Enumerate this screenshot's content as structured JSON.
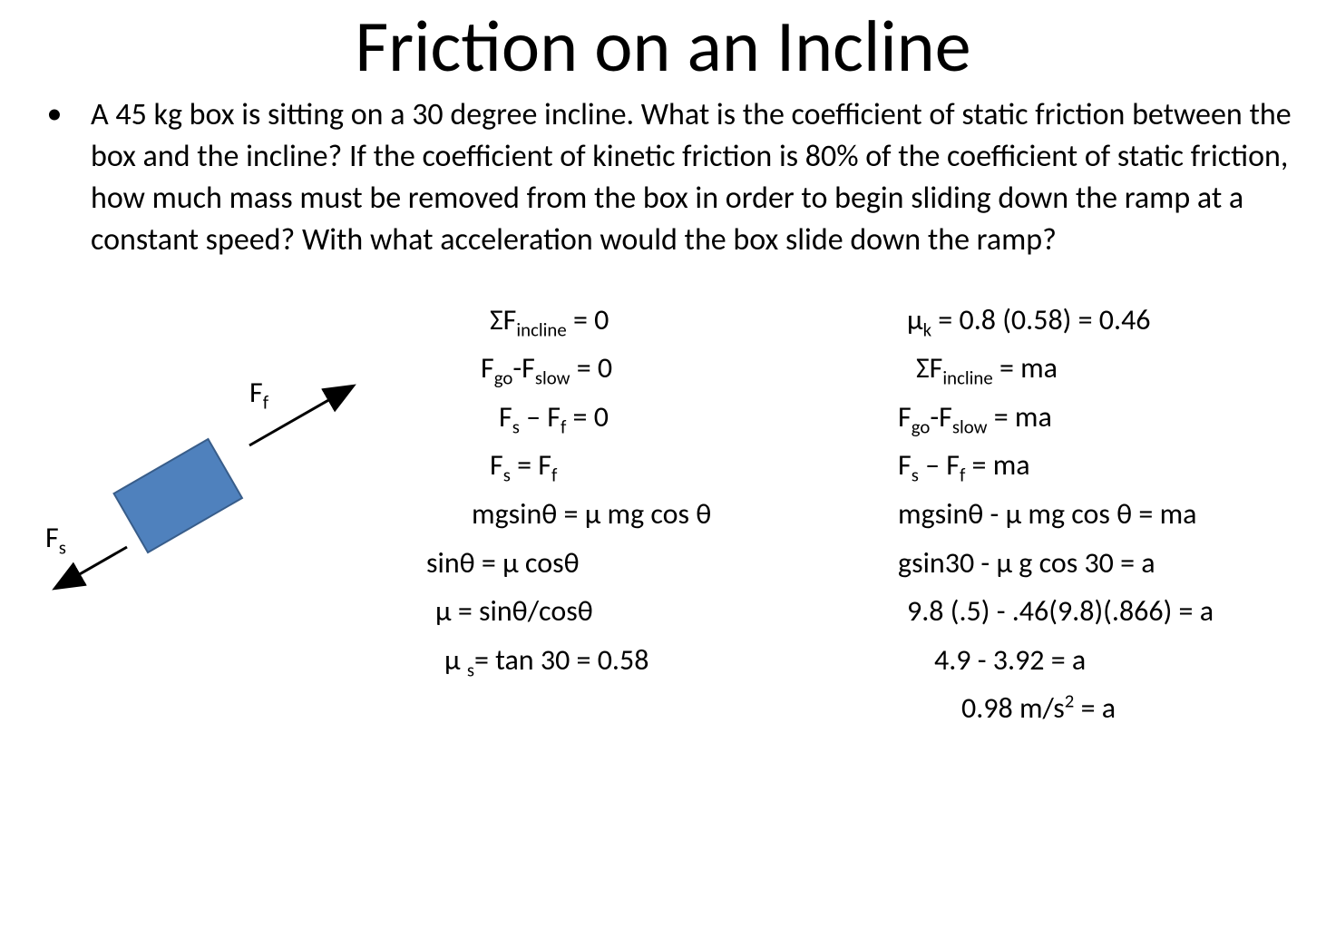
{
  "title": "Friction on an Incline",
  "bullet_char": "•",
  "problem_text": "A 45 kg box is sitting on a 30 degree incline.  What is the coefficient of static friction between the box and the incline?  If the coefficient of kinetic friction is 80% of the coefficient of static friction, how much mass must be removed from the box in order to begin sliding down the ramp at a constant speed?  With what acceleration would the box slide down the ramp?",
  "diagram": {
    "incline_angle_deg": 30,
    "box_fill": "#4f81bd",
    "box_stroke": "#385d8a",
    "arrow_color": "#000000",
    "label_Ff": "F",
    "label_Ff_sub": "f",
    "label_Fs": "F",
    "label_Fs_sub": "s"
  },
  "left_column": {
    "lines": [
      {
        "indent": 90,
        "html": "ΣF<sub>incline</sub> = 0"
      },
      {
        "indent": 80,
        "html": "F<sub>go</sub>-F<sub>slow</sub> = 0"
      },
      {
        "indent": 100,
        "html": "F<sub>s</sub> – F<sub>f</sub> = 0"
      },
      {
        "indent": 90,
        "html": "F<sub>s</sub> = F<sub>f</sub>"
      },
      {
        "indent": 70,
        "html": "mgsinθ = μ mg cos θ"
      },
      {
        "indent": 20,
        "html": "sinθ = μ cosθ"
      },
      {
        "indent": 30,
        "html": "μ = sinθ/cosθ"
      },
      {
        "indent": 40,
        "html": "μ <sub>s</sub>= tan 30 = 0.58"
      }
    ]
  },
  "right_column": {
    "lines": [
      {
        "indent": 10,
        "html": "μ<sub>k</sub> = 0.8 (0.58) = 0.46"
      },
      {
        "indent": 20,
        "html": "ΣF<sub>incline</sub> = ma"
      },
      {
        "indent": 0,
        "html": "F<sub>go</sub>-F<sub>slow</sub> = ma"
      },
      {
        "indent": 0,
        "html": "F<sub>s</sub> – F<sub>f</sub> = ma"
      },
      {
        "indent": 0,
        "html": "mgsinθ  - μ mg cos θ = ma"
      },
      {
        "indent": 0,
        "html": "gsin30  - μ g cos 30 = a"
      },
      {
        "indent": 10,
        "html": "9.8 (.5)  - .46(9.8)(.866) = a"
      },
      {
        "indent": 40,
        "html": "4.9  - 3.92 = a"
      },
      {
        "indent": 70,
        "html": "0.98 m/s<sup>2</sup> = a"
      }
    ]
  },
  "colors": {
    "background": "#ffffff",
    "text": "#000000"
  }
}
